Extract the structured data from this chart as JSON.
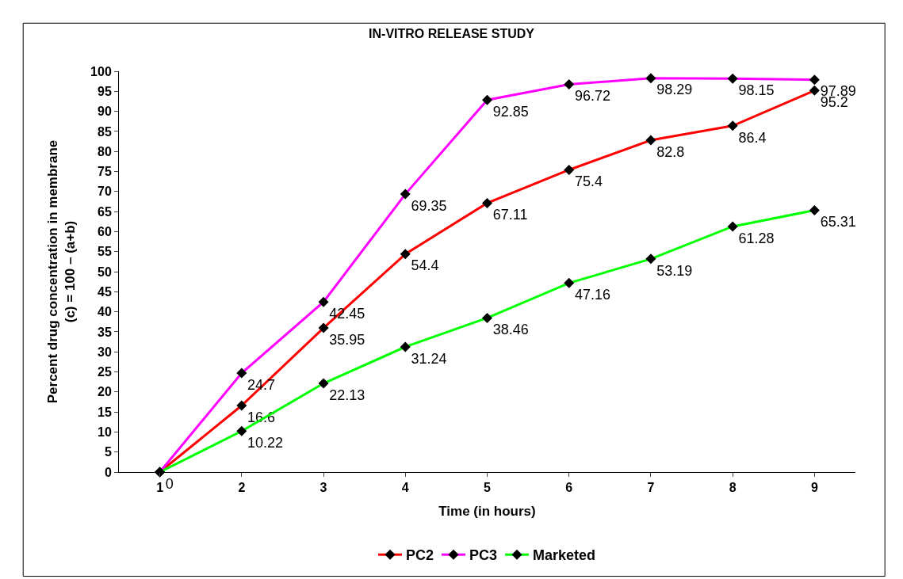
{
  "chart_data": {
    "type": "line",
    "title": "IN-VITRO RELEASE STUDY",
    "xlabel": "Time (in hours)",
    "ylabel": "Percent drug concentration in membrane\n(c) = 100 – (a+b)",
    "categories": [
      "1",
      "2",
      "3",
      "4",
      "5",
      "6",
      "7",
      "8",
      "9"
    ],
    "series": [
      {
        "name": "PC2",
        "color": "#ff0000",
        "values": [
          0,
          16.6,
          35.95,
          54.4,
          67.11,
          75.4,
          82.8,
          86.4,
          95.2
        ],
        "value_labels": [
          null,
          "16.6",
          "35.95",
          "54.4",
          "67.11",
          "75.4",
          "82.8",
          "86.4",
          "95.2"
        ]
      },
      {
        "name": "PC3",
        "color": "#ff00ff",
        "values": [
          0,
          24.7,
          42.45,
          69.35,
          92.85,
          96.72,
          98.29,
          98.15,
          97.89
        ],
        "value_labels": [
          null,
          "24.7",
          "42.45",
          "69.35",
          "92.85",
          "96.72",
          "98.29",
          "98.15",
          "97.89"
        ]
      },
      {
        "name": "Marketed",
        "color": "#00ff00",
        "values": [
          0,
          10.22,
          22.13,
          31.24,
          38.46,
          47.16,
          53.19,
          61.28,
          65.31
        ],
        "value_labels": [
          "0",
          "10.22",
          "22.13",
          "31.24",
          "38.46",
          "47.16",
          "53.19",
          "61.28",
          "65.31"
        ]
      }
    ],
    "ylim": [
      0,
      100
    ],
    "yticks": [
      0,
      5,
      10,
      15,
      20,
      25,
      30,
      35,
      40,
      45,
      50,
      55,
      60,
      65,
      70,
      75,
      80,
      85,
      90,
      95,
      100
    ],
    "legend": "bottom",
    "marker": "diamond",
    "line_style": "solid"
  }
}
